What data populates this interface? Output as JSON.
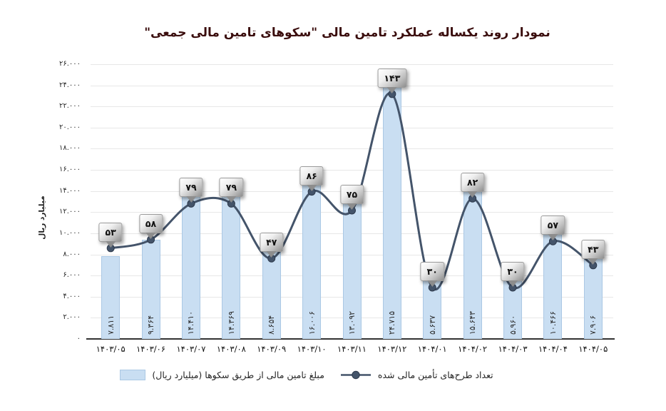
{
  "chart_data": {
    "type": "bar",
    "title": "نمودار روند یکساله عملکرد تامین مالی \"سکوهای تامین مالی جمعی\"",
    "ylabel": "میلیارد ریال",
    "ylim": [
      0,
      26000
    ],
    "ytick_step": 2000,
    "ytick_labels": [
      "۲۶.۰۰۰",
      "۲۴.۰۰۰",
      "۲۲.۰۰۰",
      "۲۰.۰۰۰",
      "۱۸.۰۰۰",
      "۱۶.۰۰۰",
      "۱۴.۰۰۰",
      "۱۲.۰۰۰",
      "۱۰.۰۰۰",
      "۸.۰۰۰",
      "۶.۰۰۰",
      "۴.۰۰۰",
      "۲.۰۰۰",
      "۰"
    ],
    "grid": "horizontal",
    "legend_position": "bottom",
    "categories": [
      "۱۴۰۳/۰۵",
      "۱۴۰۳/۰۶",
      "۱۴۰۳/۰۷",
      "۱۴۰۳/۰۸",
      "۱۴۰۳/۰۹",
      "۱۴۰۳/۱۰",
      "۱۴۰۳/۱۱",
      "۱۴۰۳/۱۲",
      "۱۴۰۴/۰۱",
      "۱۴۰۴/۰۲",
      "۱۴۰۴/۰۳",
      "۱۴۰۴/۰۴",
      "۱۴۰۴/۰۵"
    ],
    "series": [
      {
        "name": "مبلغ تامین مالی از طریق سکوها (میلیارد ریال)",
        "type": "bar",
        "axis": "primary",
        "values": [
          7811,
          9364,
          14410,
          14369,
          8654,
          16006,
          13092,
          24715,
          5637,
          15643,
          5960,
          10466,
          7906
        ],
        "labels": [
          "۷.۸۱۱",
          "۹.۳۶۴",
          "۱۴.۴۱۰",
          "۱۴.۳۶۹",
          "۸.۶۵۴",
          "۱۶.۰۰۶",
          "۱۳.۰۹۲",
          "۲۴.۷۱۵",
          "۵.۶۳۷",
          "۱۵.۶۴۳",
          "۵.۹۶۰",
          "۱۰.۴۶۶",
          "۷.۹۰۶"
        ]
      },
      {
        "name": "تعداد طرح‌های تأمین مالی شده",
        "type": "line",
        "axis": "secondary-hidden",
        "values": [
          53,
          58,
          79,
          79,
          47,
          86,
          75,
          143,
          30,
          82,
          30,
          57,
          43
        ],
        "labels": [
          "۵۳",
          "۵۸",
          "۷۹",
          "۷۹",
          "۴۷",
          "۸۶",
          "۷۵",
          "۱۴۳",
          "۳۰",
          "۸۲",
          "۳۰",
          "۵۷",
          "۴۳"
        ]
      }
    ],
    "colors": {
      "bar_fill": "#c9def2",
      "bar_border": "#abc8e4",
      "line": "#44546a",
      "marker_stroke": "#2e3a4c",
      "title_text": "#3a0d0d",
      "gridline": "#e7e7e7",
      "axis_line": "#333333"
    }
  }
}
